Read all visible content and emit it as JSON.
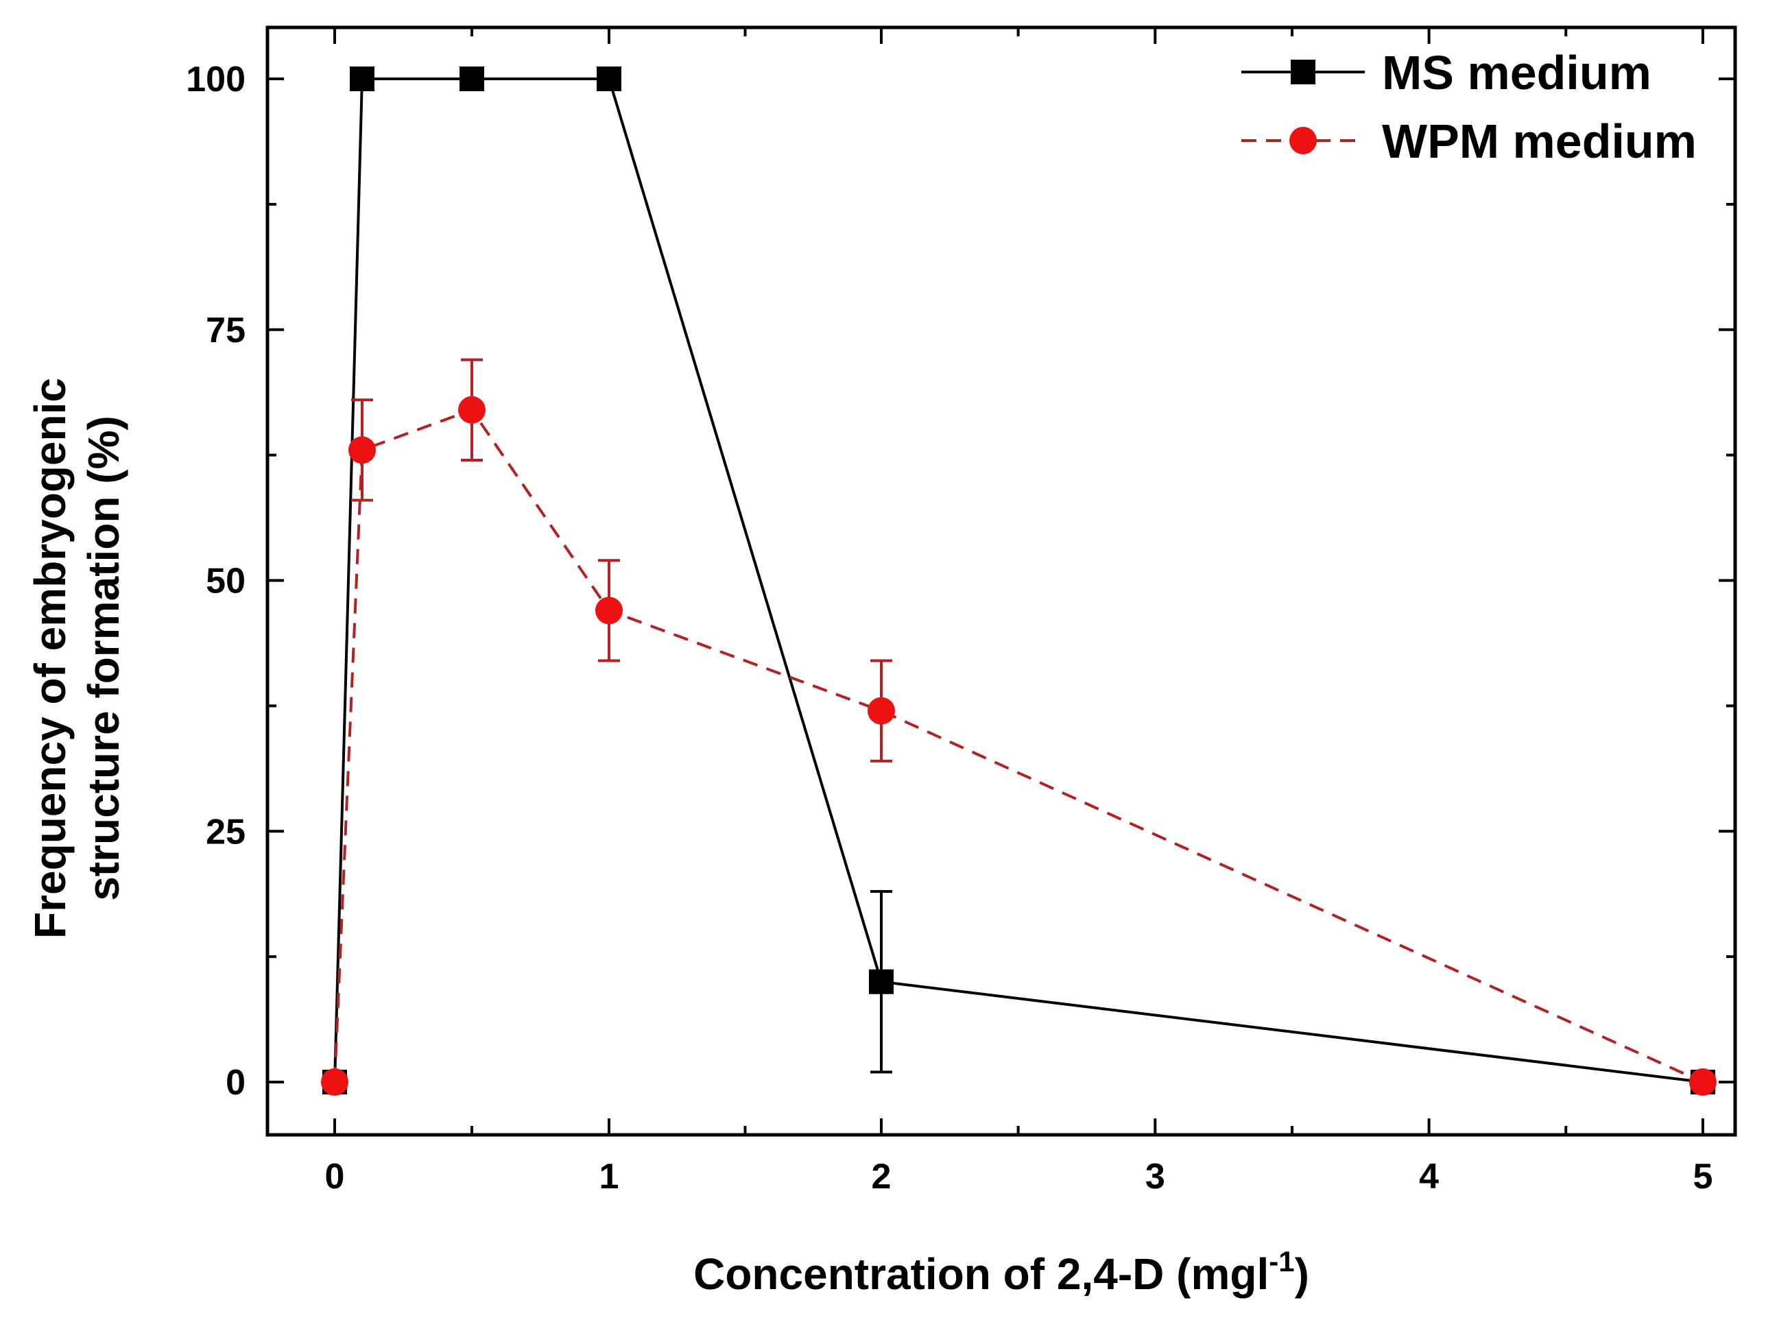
{
  "chart_data": {
    "type": "line",
    "title": "",
    "xlabel": "Concentration of 2,4-D (mgl",
    "xlabel_superscript": "-1",
    "xlabel_suffix": ")",
    "ylabel_line1": "Frequency of embryogenic",
    "ylabel_line2": "structure formation (%)",
    "x_tick_labels": [
      "0",
      "1",
      "2",
      "3",
      "4",
      "5"
    ],
    "y_tick_values": [
      0,
      25,
      50,
      75,
      100
    ],
    "ylim": [
      -5,
      105
    ],
    "x_positions": {
      "0": 0,
      "0.1": 0.1,
      "0.5": 0.5,
      "1": 1,
      "2": 2,
      "3": 3,
      "4": 4,
      "5": 5
    },
    "legend_position": "top-right",
    "series": [
      {
        "name": "MS medium",
        "style": "solid",
        "marker": "square",
        "color": "#000000",
        "x": [
          0,
          0.1,
          0.5,
          1,
          2,
          5
        ],
        "values": [
          0,
          100,
          100,
          100,
          10,
          0
        ],
        "errors": [
          0,
          0,
          0,
          0,
          9,
          0
        ]
      },
      {
        "name": "WPM medium",
        "style": "dashed",
        "marker": "circle",
        "color": "#b22222",
        "marker_color": "#ee1111",
        "x": [
          0,
          0.1,
          0.5,
          1,
          2,
          5
        ],
        "values": [
          0,
          63,
          67,
          47,
          37,
          0
        ],
        "errors": [
          0,
          5,
          5,
          5,
          5,
          0
        ]
      }
    ]
  }
}
